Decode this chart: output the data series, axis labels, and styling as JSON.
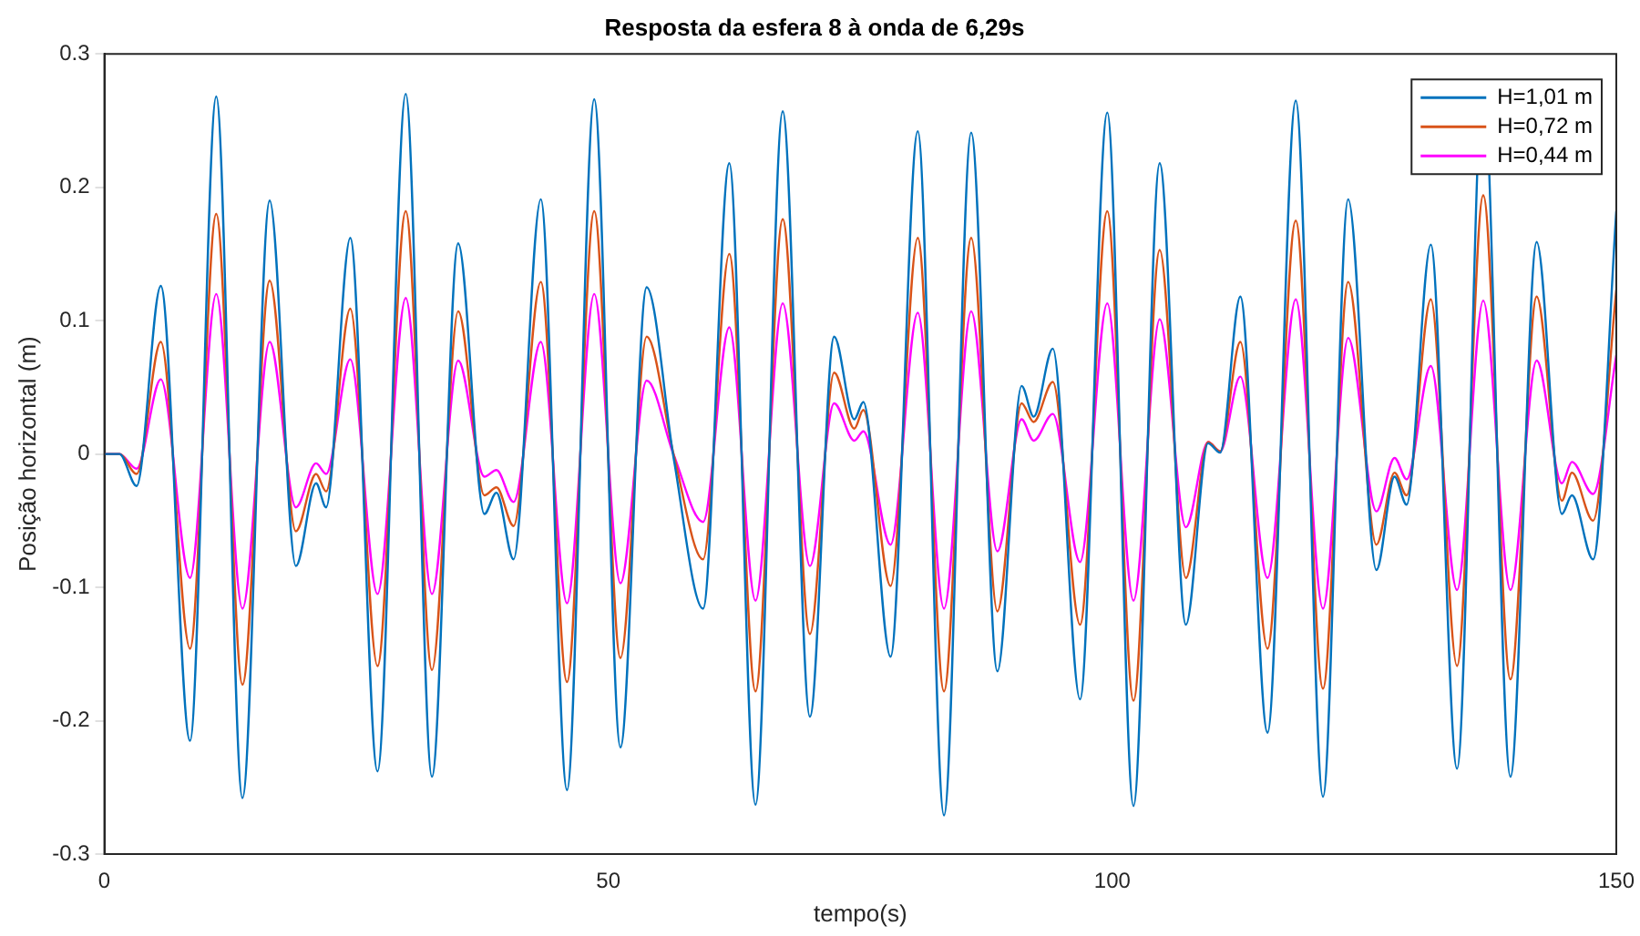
{
  "chart_data": {
    "type": "line",
    "title": "Resposta da esfera 8 à onda de 6,29s",
    "xlabel": "tempo(s)",
    "ylabel": "Posição horizontal (m)",
    "xlim": [
      0,
      150
    ],
    "xticks": [
      0,
      50,
      100,
      150
    ],
    "ylim": [
      -0.3,
      0.3
    ],
    "yticks": [
      -0.3,
      -0.2,
      -0.1,
      0,
      0.1,
      0.2,
      0.3
    ],
    "grid": false,
    "legend": "top right",
    "marker": "none",
    "line_style": "solid",
    "series": [
      {
        "name": "H=1,01 m",
        "color": "#0072bd",
        "x": [
          0,
          1.5,
          3.2,
          5.6,
          8.5,
          11.1,
          13.7,
          16.4,
          19.0,
          21.0,
          22.0,
          24.4,
          27.1,
          29.9,
          32.5,
          35.1,
          37.7,
          38.9,
          40.6,
          43.3,
          45.9,
          48.6,
          51.2,
          53.8,
          56.5,
          59.4,
          62.0,
          64.6,
          67.3,
          70.0,
          72.4,
          74.4,
          75.3,
          78.0,
          80.7,
          83.3,
          86.0,
          88.6,
          91.0,
          92.2,
          94.1,
          96.8,
          99.5,
          102.1,
          104.7,
          107.3,
          109.5,
          110.7,
          112.7,
          115.4,
          118.2,
          120.9,
          123.4,
          126.2,
          128.0,
          129.2,
          131.6,
          134.2,
          136.2,
          136.8,
          137.4,
          139.5,
          142.1,
          144.6,
          145.6,
          147.7,
          150
        ],
        "values": [
          0,
          0,
          -0.024,
          0.126,
          -0.215,
          0.268,
          -0.258,
          0.19,
          -0.084,
          -0.022,
          -0.04,
          0.162,
          -0.238,
          0.27,
          -0.242,
          0.158,
          -0.045,
          -0.029,
          -0.079,
          0.191,
          -0.252,
          0.266,
          -0.22,
          0.125,
          -0.004,
          -0.116,
          0.218,
          -0.263,
          0.257,
          -0.197,
          0.088,
          0.026,
          0.039,
          -0.152,
          0.242,
          -0.271,
          0.241,
          -0.163,
          0.051,
          0.028,
          0.079,
          -0.184,
          0.256,
          -0.264,
          0.218,
          -0.128,
          0.008,
          0.001,
          0.118,
          -0.209,
          0.265,
          -0.257,
          0.191,
          -0.087,
          -0.017,
          -0.038,
          0.157,
          -0.236,
          0.21,
          null,
          0.21,
          -0.242,
          0.159,
          -0.045,
          -0.031,
          -0.079,
          0.182
        ]
      },
      {
        "name": "H=0,72 m",
        "color": "#d95319",
        "x": [
          0,
          1.5,
          3.2,
          5.6,
          8.5,
          11.1,
          13.7,
          16.4,
          19.0,
          21.0,
          22.0,
          24.4,
          27.1,
          29.9,
          32.5,
          35.1,
          37.7,
          38.9,
          40.6,
          43.3,
          45.9,
          48.6,
          51.2,
          53.8,
          56.5,
          59.4,
          62.0,
          64.6,
          67.3,
          70.0,
          72.4,
          74.4,
          75.3,
          78.0,
          80.7,
          83.3,
          86.0,
          88.6,
          91.0,
          92.2,
          94.1,
          96.8,
          99.5,
          102.1,
          104.7,
          107.3,
          109.5,
          110.7,
          112.7,
          115.4,
          118.2,
          120.9,
          123.4,
          126.2,
          128.0,
          129.2,
          131.6,
          134.2,
          136.8,
          139.5,
          142.1,
          144.6,
          145.6,
          147.7,
          150
        ],
        "values": [
          0,
          0,
          -0.015,
          0.084,
          -0.146,
          0.18,
          -0.173,
          0.13,
          -0.058,
          -0.015,
          -0.028,
          0.109,
          -0.159,
          0.182,
          -0.162,
          0.107,
          -0.031,
          -0.025,
          -0.054,
          0.129,
          -0.171,
          0.182,
          -0.153,
          0.088,
          -0.001,
          -0.079,
          0.15,
          -0.178,
          0.176,
          -0.135,
          0.061,
          0.019,
          0.033,
          -0.099,
          0.162,
          -0.178,
          0.162,
          -0.118,
          0.038,
          0.024,
          0.054,
          -0.128,
          0.182,
          -0.185,
          0.153,
          -0.093,
          0.009,
          0.002,
          0.084,
          -0.146,
          0.175,
          -0.176,
          0.129,
          -0.068,
          -0.014,
          -0.031,
          0.116,
          -0.159,
          0.194,
          -0.169,
          0.118,
          -0.035,
          -0.014,
          -0.05,
          0.123
        ]
      },
      {
        "name": "H=0,44 m",
        "color": "#ff00ff",
        "x": [
          0,
          1.5,
          3.2,
          5.6,
          8.5,
          11.1,
          13.7,
          16.4,
          19.0,
          21.0,
          22.0,
          24.4,
          27.1,
          29.9,
          32.5,
          35.1,
          37.7,
          38.9,
          40.6,
          43.3,
          45.9,
          48.6,
          51.2,
          53.8,
          56.5,
          59.4,
          62.0,
          64.6,
          67.3,
          70.0,
          72.4,
          74.4,
          75.3,
          78.0,
          80.7,
          83.3,
          86.0,
          88.6,
          91.0,
          92.2,
          94.1,
          96.8,
          99.5,
          102.1,
          104.7,
          107.3,
          109.5,
          110.7,
          112.7,
          115.4,
          118.2,
          120.9,
          123.4,
          126.2,
          128.0,
          129.2,
          131.6,
          134.2,
          136.8,
          139.5,
          142.1,
          144.6,
          145.6,
          147.7,
          150
        ],
        "values": [
          0,
          0,
          -0.011,
          0.056,
          -0.093,
          0.12,
          -0.116,
          0.084,
          -0.04,
          -0.007,
          -0.015,
          0.071,
          -0.105,
          0.117,
          -0.105,
          0.07,
          -0.017,
          -0.012,
          -0.036,
          0.084,
          -0.112,
          0.12,
          -0.097,
          0.055,
          -0.001,
          -0.051,
          0.095,
          -0.11,
          0.113,
          -0.084,
          0.038,
          0.01,
          0.017,
          -0.068,
          0.106,
          -0.116,
          0.107,
          -0.073,
          0.026,
          0.01,
          0.03,
          -0.081,
          0.113,
          -0.11,
          0.101,
          -0.055,
          0.009,
          0.002,
          0.058,
          -0.093,
          0.116,
          -0.116,
          0.087,
          -0.043,
          -0.003,
          -0.019,
          0.066,
          -0.102,
          0.115,
          -0.102,
          0.07,
          -0.022,
          -0.006,
          -0.03,
          0.074
        ]
      }
    ]
  }
}
